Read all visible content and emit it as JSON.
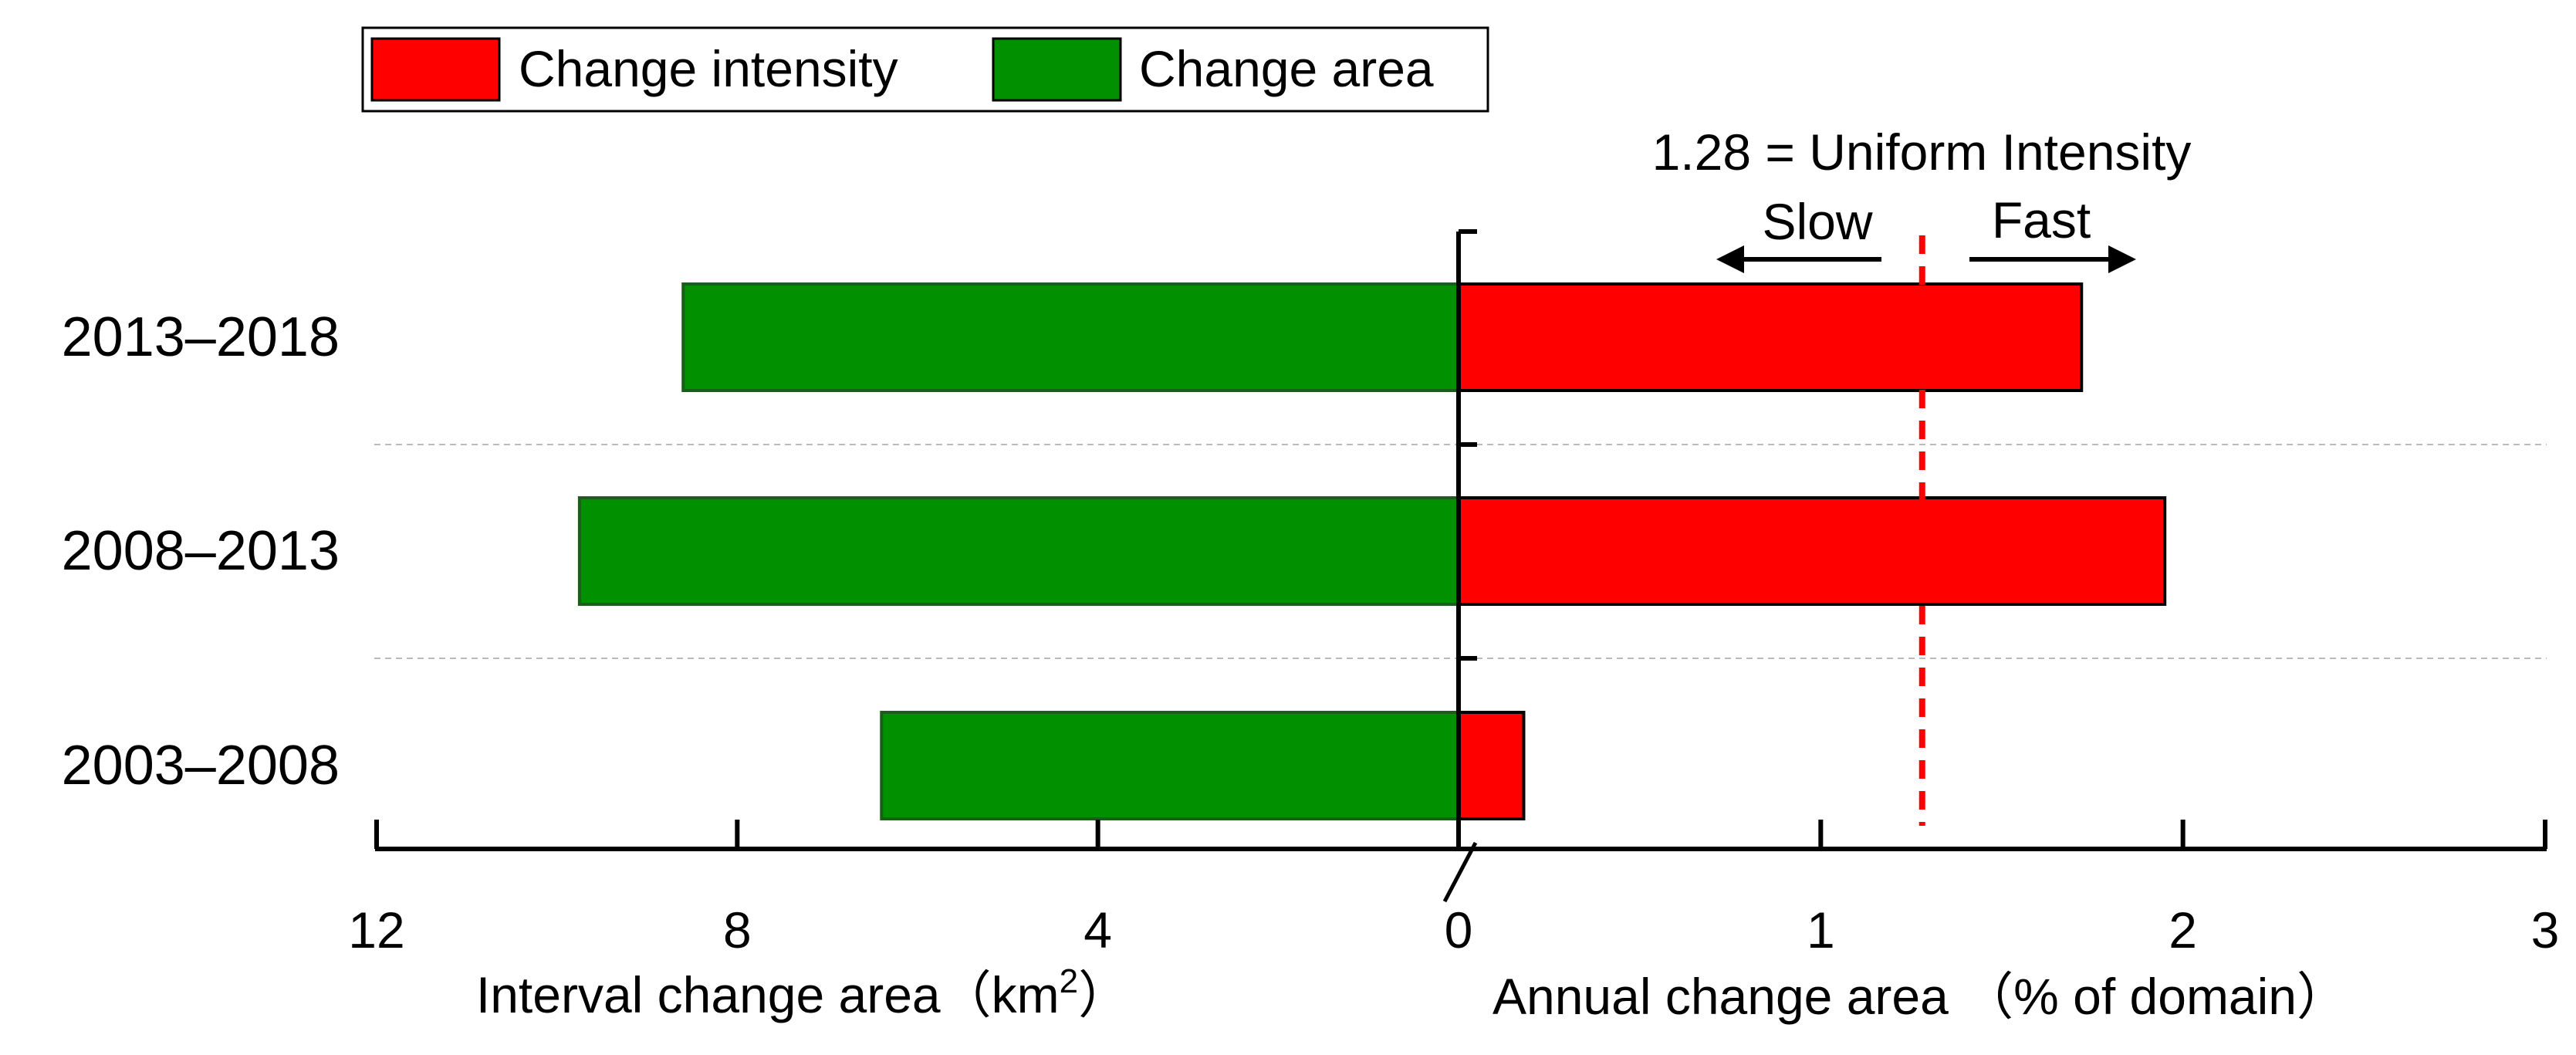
{
  "chart_data": {
    "type": "bar",
    "orientation": "horizontal",
    "layout": "diverging",
    "categories": [
      "2013–2018",
      "2008–2013",
      "2003–2008"
    ],
    "series": [
      {
        "name": "Change area",
        "color": "#009000",
        "axis": "left",
        "values": [
          8.6,
          9.75,
          6.4
        ]
      },
      {
        "name": "Change intensity",
        "color": "#ff0000",
        "axis": "right",
        "values": [
          1.72,
          1.95,
          0.18
        ]
      }
    ],
    "left_axis": {
      "label": "Interval change area（km",
      "label_sup": "2",
      "label_end": "）",
      "range": [
        12,
        0
      ],
      "ticks": [
        "12",
        "8",
        "4",
        "0"
      ],
      "tick_values": [
        12,
        8,
        4,
        0
      ]
    },
    "right_axis": {
      "label": "Annual change area （% of domain）",
      "range": [
        0,
        3
      ],
      "ticks": [
        "0",
        "1",
        "2",
        "3"
      ],
      "tick_values": [
        0,
        1,
        2,
        3
      ]
    },
    "uniform_intensity": {
      "value": 1.28,
      "label": "1.28 = Uniform Intensity",
      "slow_label": "Slow",
      "fast_label": "Fast"
    },
    "legend": {
      "position": "top-left",
      "items": [
        {
          "label": "Change intensity",
          "color": "#ff0000"
        },
        {
          "label": "Change area",
          "color": "#009000"
        }
      ]
    }
  }
}
